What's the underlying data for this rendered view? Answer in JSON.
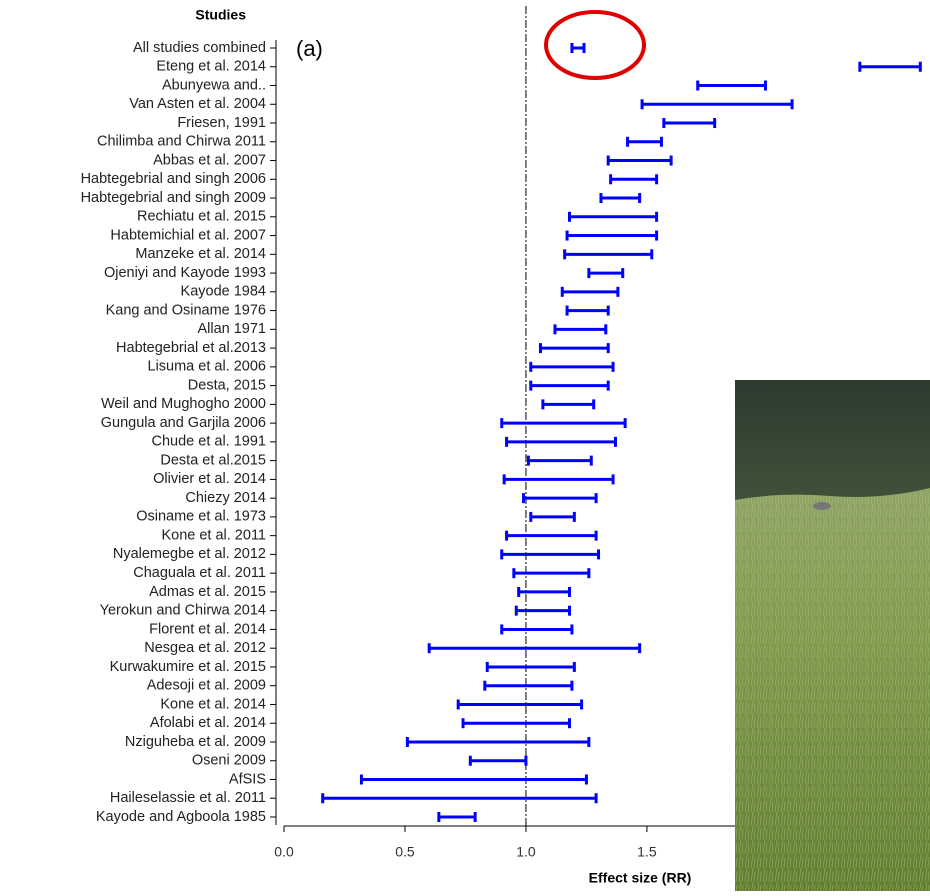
{
  "chart_data": {
    "type": "forest",
    "y_title": "Studies",
    "x_title": "Effect size (RR)",
    "annotation": "(a)",
    "categories": [
      "All studies combined",
      "Eteng et al. 2014",
      "Abunyewa and..",
      "Van Asten et al. 2004",
      "Friesen, 1991",
      "Chilimba and Chirwa 2011",
      "Abbas et al. 2007",
      "Habtegebrial and singh 2006",
      "Habtegebrial and singh 2009",
      "Rechiatu et al. 2015",
      "Habtemichial et al. 2007",
      "Manzeke et al. 2014",
      "Ojeniyi and Kayode 1993",
      "Kayode 1984",
      "Kang and Osiname 1976",
      "Allan 1971",
      "Habtegebrial et al.2013",
      "Lisuma et al. 2006",
      "Desta, 2015",
      "Weil and Mughogho 2000",
      "Gungula and Garjila 2006",
      "Chude et al. 1991",
      "Desta et al.2015",
      "Olivier et al. 2014",
      "Chiezy 2014",
      "Osiname et al. 1973",
      "Kone et al. 2011",
      "Nyalemegbe et al. 2012",
      "Chaguala et al. 2011",
      "Admas et al. 2015",
      "Yerokun and Chirwa 2014",
      "Florent et al. 2014",
      "Nesgea et al. 2012",
      "Kurwakumire et al. 2015",
      "Adesoji et al. 2009",
      "Kone et al. 2014",
      "Afolabi et al. 2014",
      "Nziguheba et al. 2009",
      "Oseni 2009",
      "AfSIS",
      "Haileselassie et al. 2011",
      "Kayode and Agboola 1985"
    ],
    "lower": [
      1.19,
      2.38,
      1.71,
      1.48,
      1.57,
      1.42,
      1.34,
      1.35,
      1.31,
      1.18,
      1.17,
      1.16,
      1.26,
      1.15,
      1.17,
      1.12,
      1.06,
      1.02,
      1.02,
      1.07,
      0.9,
      0.92,
      1.01,
      0.91,
      0.99,
      1.02,
      0.92,
      0.9,
      0.95,
      0.97,
      0.96,
      0.9,
      0.6,
      0.84,
      0.83,
      0.72,
      0.74,
      0.51,
      0.77,
      0.32,
      0.16,
      0.64
    ],
    "upper": [
      1.24,
      2.63,
      1.99,
      2.1,
      1.78,
      1.56,
      1.6,
      1.54,
      1.47,
      1.54,
      1.54,
      1.52,
      1.4,
      1.38,
      1.34,
      1.33,
      1.34,
      1.36,
      1.34,
      1.28,
      1.41,
      1.37,
      1.27,
      1.36,
      1.29,
      1.2,
      1.29,
      1.3,
      1.26,
      1.18,
      1.18,
      1.19,
      1.47,
      1.2,
      1.19,
      1.23,
      1.18,
      1.26,
      1.0,
      1.25,
      1.29,
      0.79
    ],
    "color": "#0000ff",
    "reference_line": 1,
    "xlim": [
      0,
      2.67
    ],
    "xticks": [
      {
        "value": 0,
        "label": "0.0"
      },
      0.5,
      {
        "value": 1,
        "label": "1.0"
      },
      1.5
    ]
  }
}
